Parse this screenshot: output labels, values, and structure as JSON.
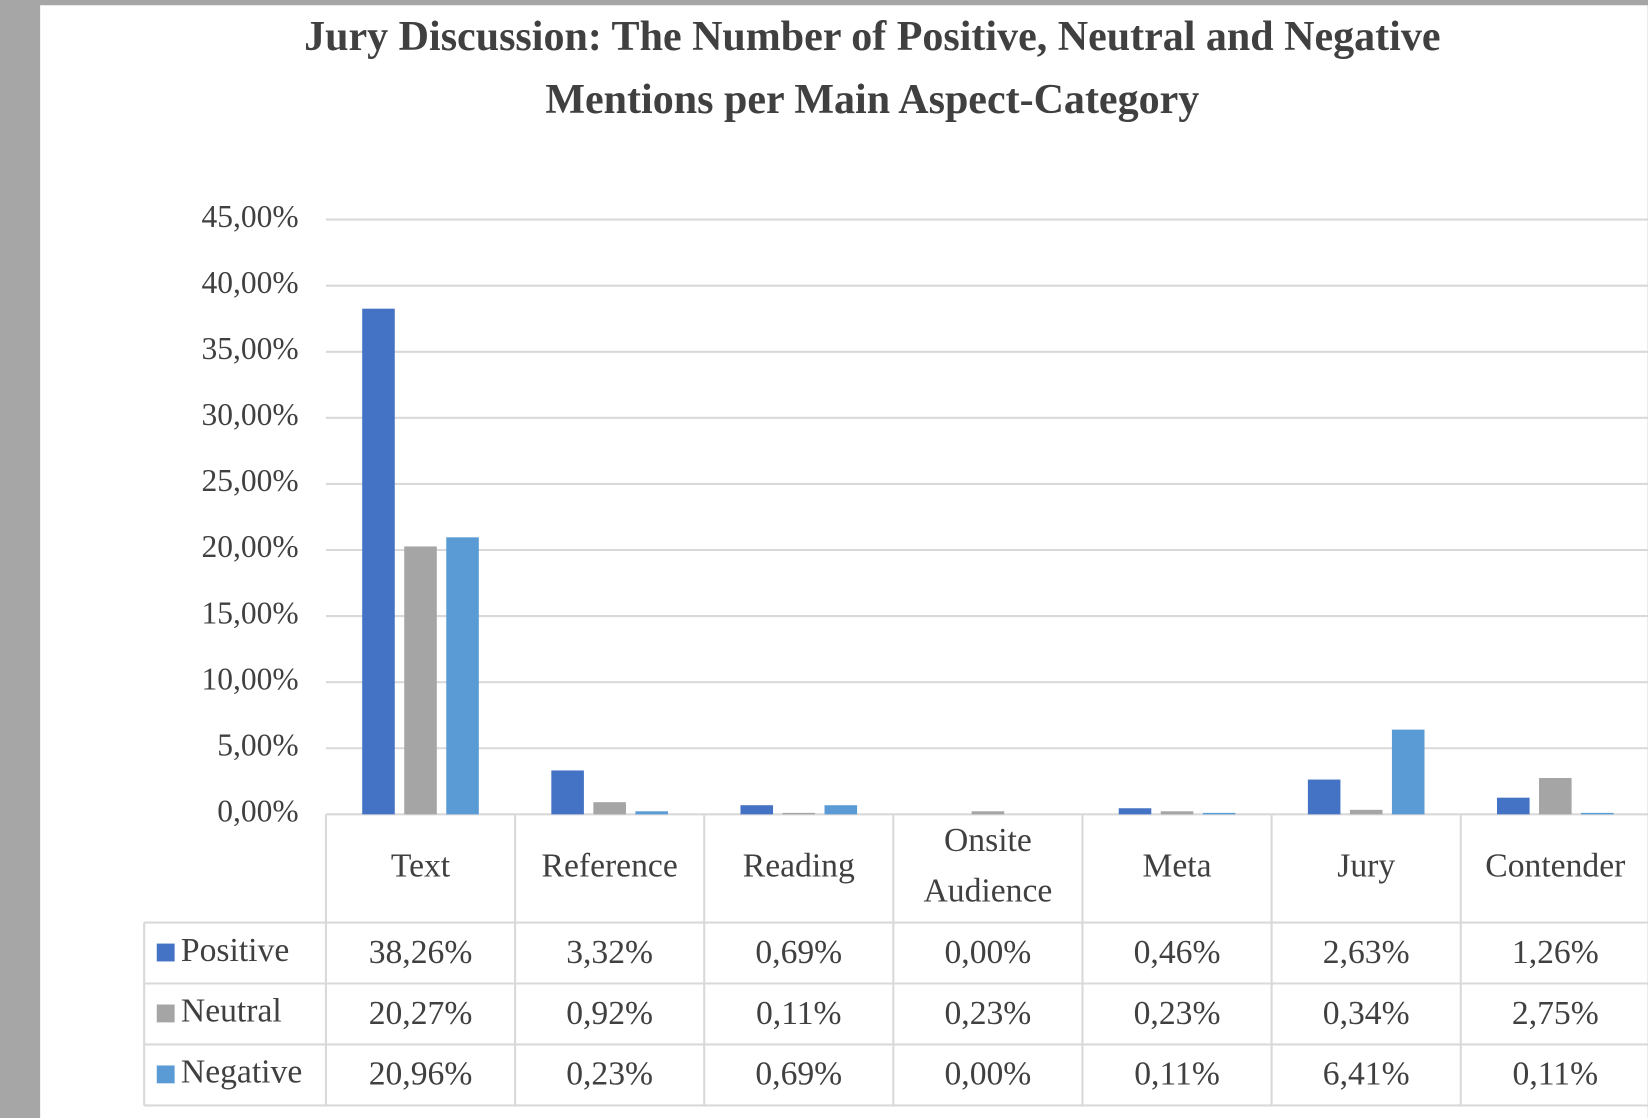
{
  "chart_data": {
    "type": "bar",
    "title": "Jury Discussion: The Number of Positive, Neutral and Negative Mentions per Main Aspect-Category",
    "categories": [
      "Text",
      "Reference",
      "Reading",
      "Onsite Audience",
      "Meta",
      "Jury",
      "Contender"
    ],
    "series": [
      {
        "name": "Positive",
        "color": "#4472c4",
        "values": [
          38.26,
          3.32,
          0.69,
          0,
          0.46,
          2.63,
          1.26
        ],
        "value_labels": [
          "38,26%",
          "3,32%",
          "0,69%",
          "0,00%",
          "0,46%",
          "2,63%",
          "1,26%"
        ]
      },
      {
        "name": "Neutral",
        "color": "#a5a5a5",
        "values": [
          20.27,
          0.92,
          0.11,
          0.23,
          0.23,
          0.34,
          2.75
        ],
        "value_labels": [
          "20,27%",
          "0,92%",
          "0,11%",
          "0,23%",
          "0,23%",
          "0,34%",
          "2,75%"
        ]
      },
      {
        "name": "Negative",
        "color": "#5b9bd5",
        "values": [
          20.96,
          0.23,
          0.69,
          0,
          0.11,
          6.41,
          0.11
        ],
        "value_labels": [
          "20,96%",
          "0,23%",
          "0,69%",
          "0,00%",
          "0,11%",
          "6,41%",
          "0,11%"
        ]
      }
    ],
    "ylim": [
      0,
      45
    ],
    "yticks": [
      {
        "value": 0,
        "label": "0,00%"
      },
      {
        "value": 5,
        "label": "5,00%"
      },
      {
        "value": 10,
        "label": "10,00%"
      },
      {
        "value": 15,
        "label": "15,00%"
      },
      {
        "value": 20,
        "label": "20,00%"
      },
      {
        "value": 25,
        "label": "25,00%"
      },
      {
        "value": 30,
        "label": "30,00%"
      },
      {
        "value": 35,
        "label": "35,00%"
      },
      {
        "value": 40,
        "label": "40,00%"
      },
      {
        "value": 45,
        "label": "45,00%"
      }
    ],
    "grid": true
  }
}
